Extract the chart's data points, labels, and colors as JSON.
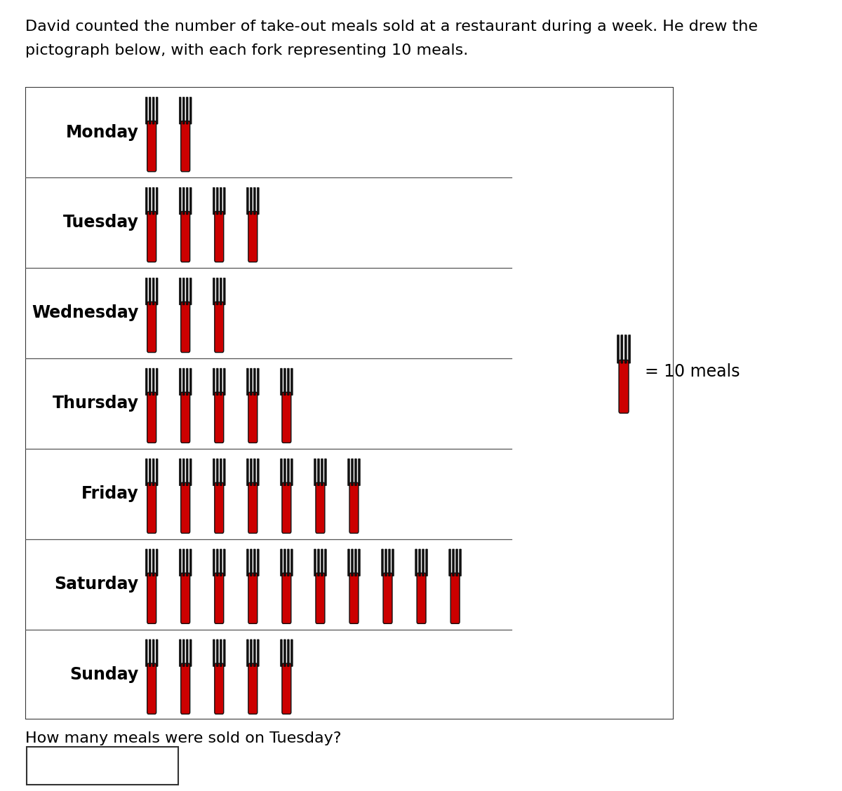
{
  "title_line1": "David counted the number of take-out meals sold at a restaurant during a week. He drew the",
  "title_line2": "pictograph below, with each fork representing 10 meals.",
  "days": [
    "Monday",
    "Tuesday",
    "Wednesday",
    "Thursday",
    "Friday",
    "Saturday",
    "Sunday"
  ],
  "forks": [
    2,
    4,
    3,
    5,
    7,
    10,
    5
  ],
  "legend_text": "= 10 meals",
  "question": "How many meals were sold on Tuesday?",
  "fork_color_handle": "#cc0000",
  "fork_color_tines": "#111111",
  "background_color": "#ffffff",
  "box_border": "#333333",
  "line_color": "#555555",
  "label_fontsize": 17,
  "title_fontsize": 16,
  "question_fontsize": 16
}
